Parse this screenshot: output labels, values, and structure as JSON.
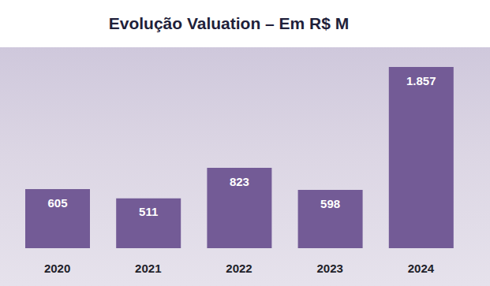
{
  "chart_data": {
    "type": "bar",
    "title": "Evolução Valuation – Em R$ M",
    "categories": [
      "2020",
      "2021",
      "2022",
      "2023",
      "2024"
    ],
    "values": [
      605,
      511,
      823,
      598,
      1857
    ],
    "value_labels": [
      "605",
      "511",
      "823",
      "598",
      "1.857"
    ],
    "color": "#735b96",
    "data_labels": true,
    "grid": false,
    "tick_labels": "x"
  }
}
